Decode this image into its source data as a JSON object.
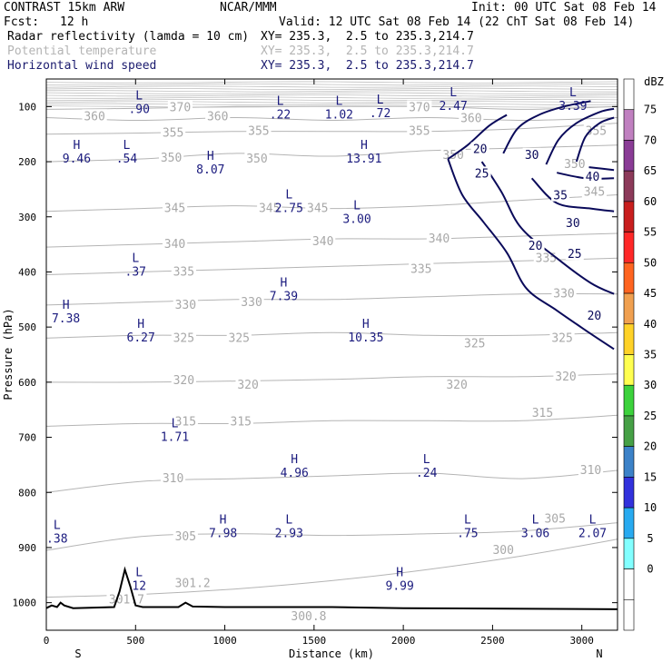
{
  "header": {
    "model": "CONTRAST 15km ARW",
    "producer": "NCAR/MMM",
    "init": "Init: 00 UTC Sat 08 Feb 14",
    "fcst_label": "Fcst:",
    "fcst_value": "12 h",
    "valid": "Valid: 12 UTC Sat 08 Feb 14 (22 ChT Sat 08 Feb 14)",
    "fields": [
      {
        "name": "Radar reflectivity (lamda = 10 cm)",
        "xy": "XY= 235.3,  2.5 to 235.3,214.7"
      },
      {
        "name": "Potential temperature",
        "xy": "XY= 235.3,  2.5 to 235.3,214.7"
      },
      {
        "name": "Horizontal wind speed",
        "xy": "XY= 235.3,  2.5 to 235.3,214.7"
      }
    ]
  },
  "chart_data": {
    "type": "cross-section contour",
    "xlabel": "Distance (km)",
    "ylabel": "Pressure (hPa)",
    "x_ticks": [
      "0",
      "500",
      "1000",
      "1500",
      "2000",
      "2500",
      "3000"
    ],
    "y_ticks": [
      "100",
      "200",
      "300",
      "400",
      "500",
      "600",
      "700",
      "800",
      "900",
      "1000"
    ],
    "xlim": [
      0,
      3200
    ],
    "ylim": [
      50,
      1050
    ],
    "x_end_labels": {
      "left": "S",
      "right": "N"
    },
    "colorbar": {
      "unit": "dBZ",
      "ticks": [
        "75",
        "70",
        "65",
        "60",
        "55",
        "50",
        "45",
        "40",
        "35",
        "30",
        "25",
        "20",
        "15",
        "10",
        "5",
        "0"
      ],
      "colors": [
        "#ffffff",
        "#c080c0",
        "#8a3c96",
        "#8c3a5a",
        "#c81e1e",
        "#ff2828",
        "#ff6420",
        "#f0a050",
        "#ffd228",
        "#ffff50",
        "#3cd23c",
        "#46a046",
        "#3c82c8",
        "#3232dc",
        "#28aaf0",
        "#82ffff",
        "#ffffff",
        "#ffffff"
      ]
    },
    "theta_isentropes": [
      {
        "label": "300",
        "p": [
          990,
          985,
          975,
          960,
          940,
          915,
          885
        ]
      },
      {
        "label": "305",
        "p": [
          905,
          880,
          875,
          878,
          875,
          870,
          855
        ]
      },
      {
        "label": "310",
        "p": [
          800,
          780,
          775,
          770,
          765,
          775,
          760
        ]
      },
      {
        "label": "315",
        "p": [
          680,
          675,
          675,
          670,
          670,
          670,
          660
        ]
      },
      {
        "label": "320",
        "p": [
          600,
          600,
          598,
          595,
          590,
          590,
          585
        ]
      },
      {
        "label": "325",
        "p": [
          520,
          515,
          515,
          510,
          515,
          515,
          510
        ]
      },
      {
        "label": "330",
        "p": [
          460,
          455,
          450,
          450,
          445,
          440,
          440
        ]
      },
      {
        "label": "335",
        "p": [
          405,
          400,
          395,
          390,
          385,
          380,
          375
        ]
      },
      {
        "label": "340",
        "p": [
          355,
          350,
          345,
          340,
          340,
          335,
          330
        ]
      },
      {
        "label": "345",
        "p": [
          290,
          285,
          280,
          285,
          280,
          270,
          260
        ]
      },
      {
        "label": "350",
        "p": [
          200,
          195,
          185,
          190,
          180,
          175,
          170
        ]
      },
      {
        "label": "355",
        "p": [
          150,
          148,
          145,
          145,
          145,
          140,
          130
        ]
      },
      {
        "label": "360",
        "p": [
          120,
          125,
          120,
          125,
          120,
          125,
          120
        ]
      },
      {
        "label": "370",
        "p": [
          105,
          103,
          100,
          100,
          100,
          105,
          100
        ]
      }
    ],
    "theta_labels": [
      {
        "text": "300",
        "x": 2560,
        "p": 905
      },
      {
        "text": "301.2",
        "x": 820,
        "p": 965
      },
      {
        "text": "300.8",
        "x": 1470,
        "p": 1025
      },
      {
        "text": "301.7",
        "x": 450,
        "p": 995
      },
      {
        "text": "305",
        "x": 780,
        "p": 880
      },
      {
        "text": "305",
        "x": 2850,
        "p": 848
      },
      {
        "text": "310",
        "x": 710,
        "p": 775
      },
      {
        "text": "310",
        "x": 3050,
        "p": 760
      },
      {
        "text": "315",
        "x": 780,
        "p": 672
      },
      {
        "text": "315",
        "x": 1090,
        "p": 672
      },
      {
        "text": "315",
        "x": 2780,
        "p": 656
      },
      {
        "text": "320",
        "x": 770,
        "p": 597
      },
      {
        "text": "320",
        "x": 1130,
        "p": 605
      },
      {
        "text": "320",
        "x": 2300,
        "p": 605
      },
      {
        "text": "320",
        "x": 2910,
        "p": 590
      },
      {
        "text": "325",
        "x": 770,
        "p": 520
      },
      {
        "text": "325",
        "x": 1080,
        "p": 520
      },
      {
        "text": "325",
        "x": 2400,
        "p": 530
      },
      {
        "text": "325",
        "x": 2890,
        "p": 520
      },
      {
        "text": "330",
        "x": 780,
        "p": 460
      },
      {
        "text": "330",
        "x": 1150,
        "p": 455
      },
      {
        "text": "330",
        "x": 2900,
        "p": 440
      },
      {
        "text": "335",
        "x": 770,
        "p": 400
      },
      {
        "text": "335",
        "x": 2100,
        "p": 395
      },
      {
        "text": "335",
        "x": 2800,
        "p": 375
      },
      {
        "text": "340",
        "x": 720,
        "p": 350
      },
      {
        "text": "340",
        "x": 1550,
        "p": 345
      },
      {
        "text": "340",
        "x": 2200,
        "p": 340
      },
      {
        "text": "345",
        "x": 720,
        "p": 285
      },
      {
        "text": "345",
        "x": 1250,
        "p": 285
      },
      {
        "text": "345",
        "x": 1520,
        "p": 285
      },
      {
        "text": "345",
        "x": 3070,
        "p": 255
      },
      {
        "text": "350",
        "x": 700,
        "p": 193
      },
      {
        "text": "350",
        "x": 1180,
        "p": 195
      },
      {
        "text": "350",
        "x": 2280,
        "p": 188
      },
      {
        "text": "350",
        "x": 2960,
        "p": 205
      },
      {
        "text": "355",
        "x": 710,
        "p": 148
      },
      {
        "text": "355",
        "x": 1190,
        "p": 145
      },
      {
        "text": "355",
        "x": 2090,
        "p": 145
      },
      {
        "text": "355",
        "x": 3080,
        "p": 145
      },
      {
        "text": "360",
        "x": 270,
        "p": 118
      },
      {
        "text": "360",
        "x": 960,
        "p": 118
      },
      {
        "text": "360",
        "x": 2380,
        "p": 122
      },
      {
        "text": "370",
        "x": 750,
        "p": 102
      },
      {
        "text": "370",
        "x": 2090,
        "p": 102
      }
    ],
    "wind_contours": [
      {
        "label": "20",
        "pts": [
          [
            2250,
            195
          ],
          [
            2330,
            260
          ],
          [
            2450,
            310
          ],
          [
            2580,
            365
          ],
          [
            2690,
            430
          ],
          [
            2860,
            470
          ],
          [
            3040,
            510
          ],
          [
            3180,
            540
          ]
        ]
      },
      {
        "label": "25",
        "pts": [
          [
            2250,
            195
          ],
          [
            2360,
            170
          ],
          [
            2480,
            135
          ],
          [
            2580,
            115
          ]
        ]
      },
      {
        "label": "25",
        "pts": [
          [
            2440,
            200
          ],
          [
            2550,
            255
          ],
          [
            2660,
            320
          ],
          [
            2860,
            375
          ],
          [
            3050,
            420
          ],
          [
            3180,
            440
          ]
        ]
      },
      {
        "label": "30",
        "pts": [
          [
            2560,
            185
          ],
          [
            2640,
            140
          ],
          [
            2760,
            115
          ],
          [
            2900,
            100
          ],
          [
            3050,
            90
          ]
        ]
      },
      {
        "label": "30",
        "pts": [
          [
            2720,
            230
          ],
          [
            2860,
            275
          ],
          [
            3050,
            285
          ],
          [
            3180,
            290
          ]
        ]
      },
      {
        "label": "35",
        "pts": [
          [
            2800,
            205
          ],
          [
            2870,
            160
          ],
          [
            2970,
            130
          ],
          [
            3100,
            110
          ],
          [
            3180,
            104
          ]
        ]
      },
      {
        "label": "35",
        "pts": [
          [
            2860,
            220
          ],
          [
            3020,
            230
          ],
          [
            3180,
            230
          ]
        ]
      },
      {
        "label": "40",
        "pts": [
          [
            2970,
            200
          ],
          [
            3020,
            155
          ],
          [
            3100,
            130
          ],
          [
            3180,
            120
          ]
        ]
      },
      {
        "label": "40",
        "pts": [
          [
            3040,
            210
          ],
          [
            3180,
            215
          ]
        ]
      }
    ],
    "wind_labels": [
      {
        "text": "20",
        "x": 2430,
        "p": 178
      },
      {
        "text": "25",
        "x": 2440,
        "p": 222
      },
      {
        "text": "30",
        "x": 2720,
        "p": 188
      },
      {
        "text": "35",
        "x": 2880,
        "p": 262
      },
      {
        "text": "40",
        "x": 3060,
        "p": 228
      },
      {
        "text": "30",
        "x": 2950,
        "p": 312
      },
      {
        "text": "20",
        "x": 2740,
        "p": 353
      },
      {
        "text": "25",
        "x": 2960,
        "p": 368
      },
      {
        "text": "20",
        "x": 3070,
        "p": 480
      }
    ],
    "extrema": [
      {
        "type": "L",
        "value": ".90",
        "x": 520,
        "p": 90
      },
      {
        "type": "L",
        "value": ".22",
        "x": 1310,
        "p": 100
      },
      {
        "type": "L",
        "value": "1.02",
        "x": 1640,
        "p": 100
      },
      {
        "type": "L",
        "value": ".72",
        "x": 1870,
        "p": 98
      },
      {
        "type": "L",
        "value": "2.47",
        "x": 2280,
        "p": 85
      },
      {
        "type": "L",
        "value": "3.39",
        "x": 2950,
        "p": 85
      },
      {
        "type": "H",
        "value": "9.46",
        "x": 170,
        "p": 180
      },
      {
        "type": "L",
        "value": ".54",
        "x": 450,
        "p": 180
      },
      {
        "type": "H",
        "value": "8.07",
        "x": 920,
        "p": 200
      },
      {
        "type": "H",
        "value": "13.91",
        "x": 1780,
        "p": 180
      },
      {
        "type": "L",
        "value": "2.75",
        "x": 1360,
        "p": 270
      },
      {
        "type": "L",
        "value": "3.00",
        "x": 1740,
        "p": 290
      },
      {
        "type": "L",
        "value": ".37",
        "x": 500,
        "p": 385
      },
      {
        "type": "H",
        "value": "7.39",
        "x": 1330,
        "p": 430
      },
      {
        "type": "H",
        "value": "7.38",
        "x": 110,
        "p": 470
      },
      {
        "type": "H",
        "value": "6.27",
        "x": 530,
        "p": 505
      },
      {
        "type": "H",
        "value": "10.35",
        "x": 1790,
        "p": 505
      },
      {
        "type": "L",
        "value": "1.71",
        "x": 720,
        "p": 685
      },
      {
        "type": "H",
        "value": "4.96",
        "x": 1390,
        "p": 750
      },
      {
        "type": "L",
        "value": ".24",
        "x": 2130,
        "p": 750
      },
      {
        "type": "L",
        "value": ".38",
        "x": 60,
        "p": 870
      },
      {
        "type": "H",
        "value": "7.98",
        "x": 990,
        "p": 860
      },
      {
        "type": "L",
        "value": "2.93",
        "x": 1360,
        "p": 860
      },
      {
        "type": "L",
        "value": ".75",
        "x": 2360,
        "p": 860
      },
      {
        "type": "L",
        "value": "3.06",
        "x": 2740,
        "p": 860
      },
      {
        "type": "L",
        "value": "2.07",
        "x": 3060,
        "p": 860
      },
      {
        "type": "L",
        "value": "12",
        "x": 520,
        "p": 955
      },
      {
        "type": "H",
        "value": "9.99",
        "x": 1980,
        "p": 955
      }
    ],
    "terrain_pressure": [
      [
        0,
        1010
      ],
      [
        30,
        1005
      ],
      [
        60,
        1008
      ],
      [
        80,
        1000
      ],
      [
        100,
        1005
      ],
      [
        150,
        1010
      ],
      [
        380,
        1008
      ],
      [
        410,
        980
      ],
      [
        440,
        940
      ],
      [
        470,
        970
      ],
      [
        500,
        1005
      ],
      [
        540,
        1008
      ],
      [
        740,
        1008
      ],
      [
        780,
        1000
      ],
      [
        820,
        1007
      ],
      [
        1000,
        1008
      ],
      [
        1600,
        1008
      ],
      [
        2000,
        1010
      ],
      [
        3200,
        1012
      ]
    ]
  }
}
